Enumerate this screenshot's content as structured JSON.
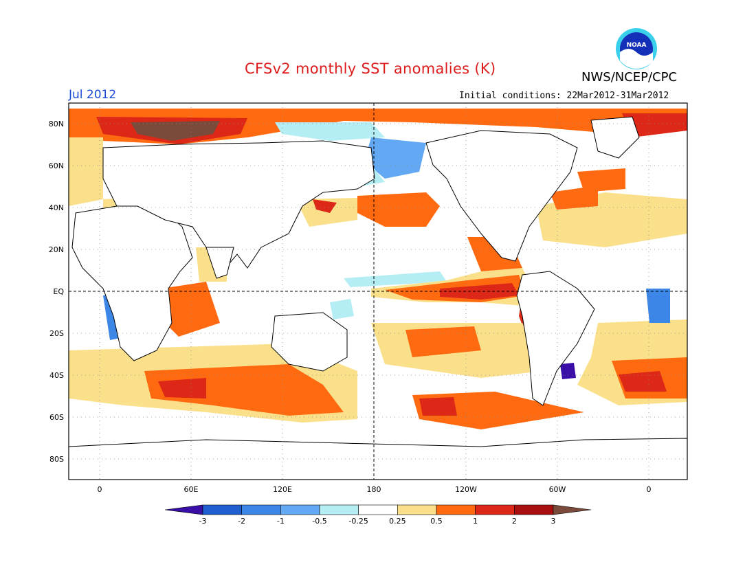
{
  "header": {
    "title": "CFSv2 monthly SST anomalies (K)",
    "agency": "NWS/NCEP/CPC",
    "logo_text": "NOAA",
    "month": "Jul 2012",
    "initial_conditions": "Initial conditions: 22Mar2012-31Mar2012"
  },
  "map": {
    "lat_labels": [
      "80N",
      "60N",
      "40N",
      "20N",
      "EQ",
      "20S",
      "40S",
      "60S",
      "80S"
    ],
    "lon_labels": [
      "0",
      "60E",
      "120E",
      "180",
      "120W",
      "60W",
      "0"
    ],
    "longitude_range": [
      -20,
      340
    ],
    "latitude_range": [
      -90,
      90
    ]
  },
  "colorbar": {
    "levels": [
      "-3",
      "-2",
      "-1",
      "-0.5",
      "-0.25",
      "0.25",
      "0.5",
      "1",
      "2",
      "3"
    ],
    "colors": [
      "#3a0fa8",
      "#1f5fd0",
      "#3b86e6",
      "#63a8f2",
      "#b4eef4",
      "#ffffff",
      "#fbe08c",
      "#ff6a10",
      "#dd2818",
      "#a80f0f",
      "#7a4a3a"
    ]
  },
  "colors": {
    "title": "#dd1d1d",
    "month": "#1a4dd6",
    "land_outline": "#000000",
    "ocean": "#ffffff"
  }
}
